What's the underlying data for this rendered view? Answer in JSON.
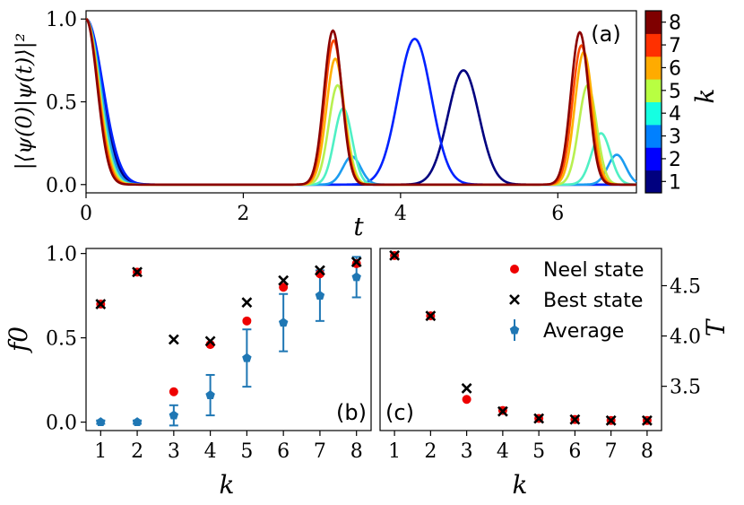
{
  "chart_data": [
    {
      "panel": "(a)",
      "type": "line",
      "xlabel": "t",
      "ylabel": "|⟨ψ(0)|ψ(t)⟩|²",
      "xlim": [
        0,
        7
      ],
      "ylim": [
        -0.05,
        1.05
      ],
      "xticks": [
        "0",
        "2",
        "4",
        "6"
      ],
      "yticks": [
        "0.0",
        "0.5",
        "1.0"
      ],
      "grid": false,
      "colorbar": {
        "label": "k",
        "ticks": [
          "1",
          "2",
          "3",
          "4",
          "5",
          "6",
          "7",
          "8"
        ],
        "colors": [
          "#00007f",
          "#0000ff",
          "#0080ff",
          "#15ffe2",
          "#b8ff41",
          "#ffab00",
          "#ff3000",
          "#7f0000"
        ]
      },
      "series": [
        {
          "k": 1,
          "color": "#00007f",
          "decay": 0.28,
          "revivals": [
            {
              "t": 4.8,
              "peak": 0.69,
              "width": 0.28
            }
          ]
        },
        {
          "k": 2,
          "color": "#0022ff",
          "decay": 0.3,
          "revivals": [
            {
              "t": 4.18,
              "peak": 0.88,
              "width": 0.3
            }
          ]
        },
        {
          "k": 3,
          "color": "#1c9cf0",
          "decay": 0.26,
          "revivals": [
            {
              "t": 3.38,
              "peak": 0.17,
              "width": 0.16
            },
            {
              "t": 6.75,
              "peak": 0.18,
              "width": 0.16
            }
          ]
        },
        {
          "k": 4,
          "color": "#4ff0c4",
          "decay": 0.24,
          "revivals": [
            {
              "t": 3.27,
              "peak": 0.46,
              "width": 0.16
            },
            {
              "t": 6.55,
              "peak": 0.31,
              "width": 0.17
            }
          ]
        },
        {
          "k": 5,
          "color": "#b8f050",
          "decay": 0.23,
          "revivals": [
            {
              "t": 3.2,
              "peak": 0.6,
              "width": 0.16
            },
            {
              "t": 6.38,
              "peak": 0.6,
              "width": 0.16
            }
          ]
        },
        {
          "k": 6,
          "color": "#ffb000",
          "decay": 0.22,
          "revivals": [
            {
              "t": 3.17,
              "peak": 0.76,
              "width": 0.16
            },
            {
              "t": 6.33,
              "peak": 0.8,
              "width": 0.16
            }
          ]
        },
        {
          "k": 7,
          "color": "#ff4a00",
          "decay": 0.21,
          "revivals": [
            {
              "t": 3.15,
              "peak": 0.87,
              "width": 0.16
            },
            {
              "t": 6.3,
              "peak": 0.84,
              "width": 0.16
            }
          ]
        },
        {
          "k": 8,
          "color": "#8b0000",
          "decay": 0.2,
          "revivals": [
            {
              "t": 3.14,
              "peak": 0.93,
              "width": 0.16
            },
            {
              "t": 6.28,
              "peak": 0.92,
              "width": 0.16
            }
          ]
        }
      ]
    },
    {
      "panel": "(b)",
      "type": "scatter",
      "xlabel": "k",
      "ylabel": "f0",
      "x": [
        1,
        2,
        3,
        4,
        5,
        6,
        7,
        8
      ],
      "xlim": [
        0.6,
        8.4
      ],
      "ylim": [
        -0.05,
        1.03
      ],
      "yticks": [
        "0.0",
        "0.5",
        "1.0"
      ],
      "series": [
        {
          "name": "Neel state",
          "marker": "circle",
          "color": "#ee0000",
          "values": [
            0.7,
            0.89,
            0.18,
            0.46,
            0.6,
            0.8,
            0.88,
            0.94
          ]
        },
        {
          "name": "Best state",
          "marker": "x",
          "color": "#000000",
          "values": [
            0.7,
            0.89,
            0.49,
            0.48,
            0.71,
            0.84,
            0.9,
            0.95
          ]
        },
        {
          "name": "Average",
          "marker": "pentagon",
          "color": "#1f77b4",
          "values": [
            0.0,
            0.0,
            0.04,
            0.16,
            0.38,
            0.59,
            0.75,
            0.86
          ],
          "errors": [
            0.01,
            0.01,
            0.06,
            0.12,
            0.17,
            0.17,
            0.15,
            0.12
          ]
        }
      ]
    },
    {
      "panel": "(c)",
      "type": "scatter",
      "xlabel": "k",
      "ylabel": "T",
      "x": [
        1,
        2,
        3,
        4,
        5,
        6,
        7,
        8
      ],
      "xlim": [
        0.6,
        8.4
      ],
      "ylim": [
        3.06,
        4.87
      ],
      "yticks": [
        "3.5",
        "4.0",
        "4.5"
      ],
      "legend": {
        "position": "top-right",
        "entries": [
          "Neel state",
          "Best state",
          "Average"
        ]
      },
      "series": [
        {
          "name": "Neel state",
          "marker": "circle",
          "color": "#ee0000",
          "values": [
            4.8,
            4.2,
            3.37,
            3.26,
            3.18,
            3.17,
            3.16,
            3.16
          ]
        },
        {
          "name": "Best state",
          "marker": "x",
          "color": "#000000",
          "values": [
            4.8,
            4.2,
            3.48,
            3.25,
            3.18,
            3.17,
            3.16,
            3.16
          ]
        }
      ]
    }
  ]
}
